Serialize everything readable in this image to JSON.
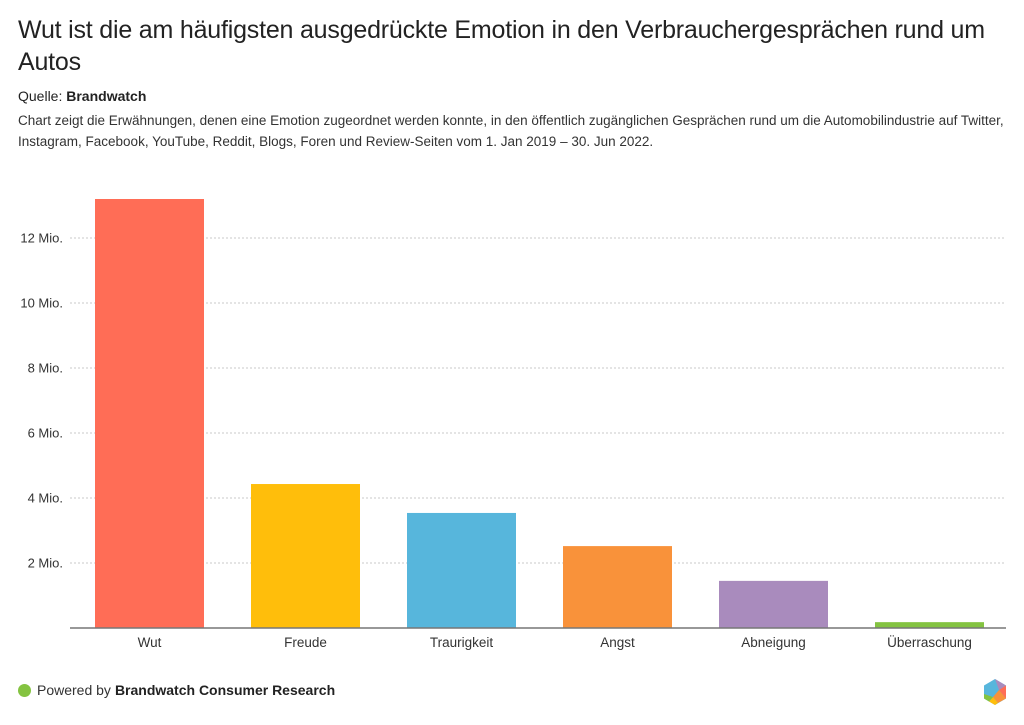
{
  "header": {
    "title": "Wut ist die am häufigsten ausgedrückte Emotion in den Verbrauchergesprächen rund um Autos",
    "source_label": "Quelle:",
    "source_name": "Brandwatch",
    "description": "Chart zeigt die Erwähnungen, denen eine Emotion zugeordnet werden konnte, in den öffentlich zugänglichen Gesprächen rund um die Automobilindustrie auf Twitter, Instagram, Facebook, YouTube, Reddit, Blogs, Foren und Review-Seiten vom 1. Jan 2019 – 30. Jun 2022."
  },
  "footer": {
    "powered_by": "Powered by",
    "brand": "Brandwatch Consumer Research",
    "dot_color": "#84c341",
    "logo_icon": "brandwatch-hexagon-logo"
  },
  "chart_data": {
    "type": "bar",
    "title": "Wut ist die am häufigsten ausgedrückte Emotion in den Verbrauchergesprächen rund um Autos",
    "xlabel": "",
    "ylabel": "",
    "unit": "Mio.",
    "categories": [
      "Wut",
      "Freude",
      "Traurigkeit",
      "Angst",
      "Abneigung",
      "Überraschung"
    ],
    "values": [
      13.2,
      4.43,
      3.54,
      2.52,
      1.45,
      0.18
    ],
    "colors": [
      "#ff6d56",
      "#ffbe0b",
      "#57b6dc",
      "#f9923a",
      "#a98bbd",
      "#84c341"
    ],
    "ylim": [
      0,
      13.2
    ],
    "yticks": [
      2,
      4,
      6,
      8,
      10,
      12
    ],
    "ytick_labels": [
      "2 Mio.",
      "4 Mio.",
      "6 Mio.",
      "8 Mio.",
      "10 Mio.",
      "12 Mio."
    ],
    "grid": true,
    "grid_style": "dashed",
    "legend": "none"
  }
}
